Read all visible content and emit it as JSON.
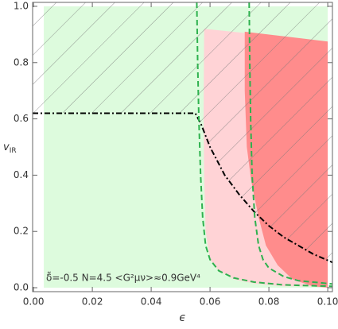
{
  "chart_data": {
    "type": "line",
    "xlabel": "ϵ",
    "ylabel": "v",
    "ylabel_sub": "IR",
    "annotation": "δ̃=-0.5  N=4.5  <G²μν>≈0.9GeV⁴",
    "xlim": [
      -0.0003,
      0.1016
    ],
    "ylim": [
      -0.014,
      1.014
    ],
    "xticks": [
      {
        "value": 0,
        "label": "0.00"
      },
      {
        "value": 0.02,
        "label": "0.02"
      },
      {
        "value": 0.04,
        "label": "0.04"
      },
      {
        "value": 0.06,
        "label": "0.06"
      },
      {
        "value": 0.08,
        "label": "0.08"
      },
      {
        "value": 0.1,
        "label": "0.10"
      }
    ],
    "yticks": [
      {
        "value": 0,
        "label": "0.0"
      },
      {
        "value": 0.2,
        "label": "0.2"
      },
      {
        "value": 0.4,
        "label": "0.4"
      },
      {
        "value": 0.6,
        "label": "0.6"
      },
      {
        "value": 0.8,
        "label": "0.8"
      },
      {
        "value": 1,
        "label": "1.0"
      }
    ],
    "regions": [
      {
        "color": "#ddfbdd",
        "x": [
          0.0035,
          0.1,
          0.1,
          0.0035
        ],
        "y": [
          0,
          0,
          1,
          1
        ]
      },
      {
        "color": "#ffd3d6",
        "x": [
          0.058,
          0.1,
          0.1,
          0.085,
          0.075,
          0.068,
          0.063,
          0.06,
          0.0585,
          0.058,
          0.0578
        ],
        "y": [
          0.92,
          0.875,
          0.005,
          0.005,
          0.015,
          0.03,
          0.06,
          0.1,
          0.2,
          0.4,
          0.6
        ]
      },
      {
        "color": "#ff8c8c",
        "x": [
          0.0718,
          0.1,
          0.1,
          0.095,
          0.088,
          0.083,
          0.079,
          0.0765,
          0.074,
          0.0725,
          0.0718
        ],
        "y": [
          0.91,
          0.875,
          0,
          0.005,
          0.03,
          0.08,
          0.15,
          0.25,
          0.38,
          0.5,
          0.7
        ]
      }
    ],
    "hatched": true,
    "series": [
      {
        "color": "#000000",
        "dash": "dashdot",
        "x": [
          -0.0003,
          0.055,
          0.057,
          0.06,
          0.065,
          0.07,
          0.075,
          0.08,
          0.085,
          0.09,
          0.095,
          0.1016
        ],
        "y": [
          0.62,
          0.62,
          0.58,
          0.5,
          0.4,
          0.33,
          0.27,
          0.22,
          0.18,
          0.15,
          0.12,
          0.09
        ]
      },
      {
        "color": "#2eb14e",
        "dash": "dashed",
        "x": [
          0.0555,
          0.0558,
          0.0562,
          0.0568,
          0.0575,
          0.0585,
          0.06,
          0.063,
          0.068,
          0.075,
          0.085,
          0.1016
        ],
        "y": [
          1.014,
          0.8,
          0.6,
          0.4,
          0.25,
          0.15,
          0.1,
          0.06,
          0.035,
          0.02,
          0.01,
          0.005
        ]
      },
      {
        "color": "#2eb14e",
        "dash": "dashed",
        "x": [
          0.0733,
          0.0735,
          0.0738,
          0.0743,
          0.0752,
          0.0765,
          0.078,
          0.08,
          0.085,
          0.09,
          0.1,
          0.1016
        ],
        "y": [
          1.014,
          0.8,
          0.6,
          0.4,
          0.25,
          0.15,
          0.1,
          0.07,
          0.04,
          0.025,
          0.015,
          0.013
        ]
      }
    ]
  }
}
